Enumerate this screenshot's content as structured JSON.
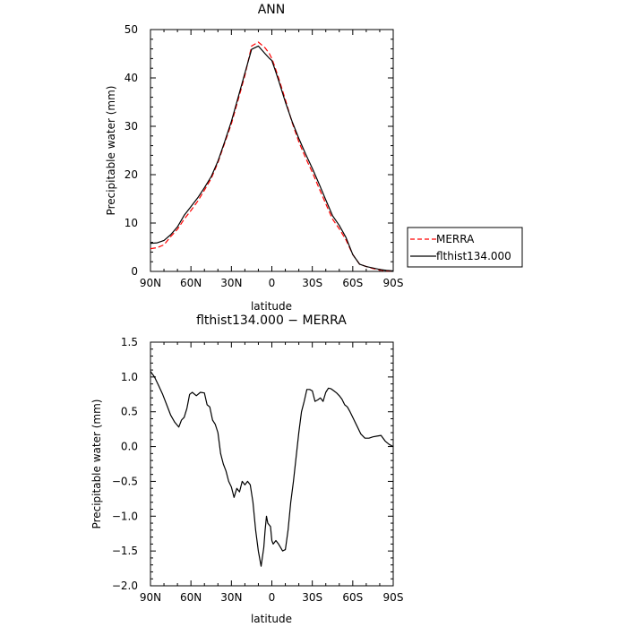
{
  "chart_data": [
    {
      "type": "line",
      "title": "ANN",
      "xlabel": "latitude",
      "ylabel": "Precipitable water (mm)",
      "x_categories_order": [
        "90N",
        "60N",
        "30N",
        "0",
        "30S",
        "60S",
        "90S"
      ],
      "x_tick_labels": [
        "90N",
        "60N",
        "30N",
        "0",
        "30S",
        "60S",
        "90S"
      ],
      "xlim": [
        90,
        -90
      ],
      "ylim": [
        0,
        50
      ],
      "y_ticks": [
        "0",
        "10",
        "20",
        "30",
        "40",
        "50"
      ],
      "grid": false,
      "legend": {
        "placement": "right-of-plot",
        "entries": [
          "MERRA",
          "flthist134.000"
        ]
      },
      "series": [
        {
          "name": "MERRA",
          "color": "#ff0000",
          "dash": true,
          "x": [
            90,
            85,
            80,
            75,
            70,
            65,
            60,
            55,
            50,
            45,
            40,
            35,
            30,
            25,
            20,
            15,
            10,
            5,
            2,
            0,
            -2,
            -5,
            -10,
            -15,
            -20,
            -25,
            -30,
            -35,
            -40,
            -45,
            -50,
            -55,
            -60,
            -65,
            -70,
            -75,
            -80,
            -85,
            -90
          ],
          "values": [
            4.7,
            4.9,
            5.5,
            7.2,
            8.7,
            10.8,
            12.6,
            14.5,
            16.8,
            19.2,
            22.5,
            26.5,
            30.5,
            35.5,
            40.5,
            46.6,
            47.4,
            46.2,
            45.1,
            44.0,
            42.5,
            40.0,
            35.5,
            30.8,
            26.8,
            23.5,
            20.5,
            17.2,
            14.0,
            10.8,
            8.8,
            6.5,
            3.5,
            1.5,
            1.0,
            0.6,
            0.3,
            0.1,
            0.1
          ]
        },
        {
          "name": "flthist134.000",
          "color": "#000000",
          "dash": false,
          "x": [
            90,
            85,
            80,
            75,
            70,
            65,
            60,
            55,
            50,
            45,
            40,
            35,
            30,
            25,
            20,
            15,
            10,
            5,
            2,
            0,
            -2,
            -5,
            -10,
            -15,
            -20,
            -25,
            -30,
            -35,
            -40,
            -45,
            -50,
            -55,
            -60,
            -65,
            -70,
            -75,
            -80,
            -85,
            -90
          ],
          "values": [
            5.8,
            5.9,
            6.4,
            7.6,
            9.2,
            11.6,
            13.4,
            15.2,
            17.3,
            19.6,
            22.8,
            26.8,
            31.0,
            36.0,
            41.0,
            45.9,
            46.6,
            45.0,
            44.1,
            43.6,
            42.0,
            39.5,
            35.0,
            31.0,
            27.5,
            24.3,
            21.3,
            18.1,
            14.8,
            11.5,
            9.5,
            7.0,
            3.5,
            1.5,
            1.0,
            0.7,
            0.4,
            0.2,
            0.1
          ]
        }
      ]
    },
    {
      "type": "line",
      "title": "flthist134.000 − MERRA",
      "xlabel": "latitude",
      "ylabel": "Precipitable water (mm)",
      "x_tick_labels": [
        "90N",
        "60N",
        "30N",
        "0",
        "30S",
        "60S",
        "90S"
      ],
      "xlim": [
        90,
        -90
      ],
      "ylim": [
        -2.0,
        1.5
      ],
      "y_ticks": [
        "−2.0",
        "−1.5",
        "−1.0",
        "−0.5",
        "0.0",
        "0.5",
        "1.0",
        "1.5"
      ],
      "grid": false,
      "series": [
        {
          "color": "#000000",
          "x": [
            90,
            87,
            84,
            81,
            78,
            75,
            72,
            69,
            67,
            65,
            63,
            61,
            59,
            56,
            53,
            50,
            48,
            46,
            44,
            42,
            40,
            38,
            36,
            34,
            32,
            30,
            28,
            26,
            24,
            22,
            20,
            18,
            16,
            14,
            12,
            10,
            8,
            6,
            5,
            4,
            3,
            1,
            0,
            -1,
            -3,
            -5,
            -8,
            -10,
            -12,
            -14,
            -16,
            -18,
            -20,
            -22,
            -24,
            -26,
            -28,
            -30,
            -32,
            -34,
            -36,
            -38,
            -40,
            -42,
            -44,
            -46,
            -48,
            -50,
            -52,
            -54,
            -56,
            -58,
            -60,
            -63,
            -66,
            -69,
            -72,
            -75,
            -78,
            -81,
            -84,
            -87,
            -90
          ],
          "values": [
            1.08,
            1.0,
            0.88,
            0.75,
            0.6,
            0.45,
            0.35,
            0.28,
            0.38,
            0.42,
            0.55,
            0.75,
            0.78,
            0.73,
            0.78,
            0.77,
            0.6,
            0.57,
            0.38,
            0.32,
            0.2,
            -0.1,
            -0.25,
            -0.35,
            -0.5,
            -0.58,
            -0.73,
            -0.6,
            -0.65,
            -0.5,
            -0.55,
            -0.5,
            -0.55,
            -0.8,
            -1.2,
            -1.5,
            -1.72,
            -1.45,
            -1.2,
            -1.0,
            -1.1,
            -1.15,
            -1.35,
            -1.4,
            -1.35,
            -1.4,
            -1.5,
            -1.48,
            -1.2,
            -0.8,
            -0.5,
            -0.15,
            0.2,
            0.5,
            0.65,
            0.82,
            0.82,
            0.8,
            0.65,
            0.67,
            0.7,
            0.65,
            0.78,
            0.84,
            0.83,
            0.8,
            0.77,
            0.73,
            0.68,
            0.6,
            0.57,
            0.5,
            0.42,
            0.3,
            0.18,
            0.12,
            0.12,
            0.14,
            0.15,
            0.16,
            0.08,
            0.03,
            0.0
          ]
        }
      ]
    }
  ]
}
